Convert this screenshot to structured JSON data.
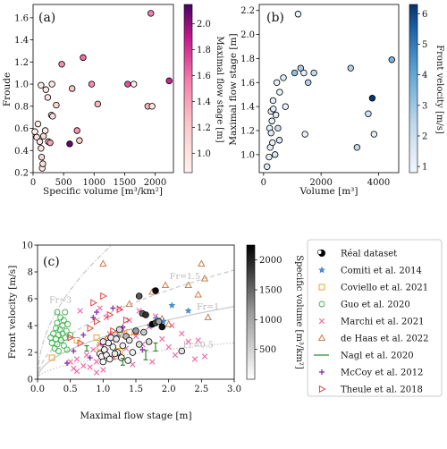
{
  "chart_data": [
    {
      "panel": "(a)",
      "type": "scatter",
      "xlabel": "Specific volume [m³/km²]",
      "ylabel": "Froude",
      "xlim": [
        0,
        2300
      ],
      "ylim": [
        0.2,
        1.72
      ],
      "xticks": [
        0,
        500,
        1000,
        1500,
        2000
      ],
      "yticks": [
        0.2,
        0.4,
        0.6,
        0.8,
        1.0,
        1.2,
        1.4,
        1.6
      ],
      "colorbar": {
        "label": "Maximal flow stage [m]",
        "ticks": [
          1.0,
          1.2,
          1.4,
          1.6,
          1.8,
          2.0
        ],
        "range": [
          0.85,
          2.15
        ],
        "colormap": "RdPu"
      },
      "points": [
        {
          "x": 30,
          "y": 0.57,
          "c": 0.9
        },
        {
          "x": 60,
          "y": 0.52,
          "c": 0.95
        },
        {
          "x": 80,
          "y": 0.64,
          "c": 0.9
        },
        {
          "x": 110,
          "y": 0.48,
          "c": 0.95
        },
        {
          "x": 130,
          "y": 0.99,
          "c": 0.9
        },
        {
          "x": 130,
          "y": 0.42,
          "c": 1.0
        },
        {
          "x": 140,
          "y": 0.34,
          "c": 1.1
        },
        {
          "x": 150,
          "y": 0.24,
          "c": 0.95
        },
        {
          "x": 160,
          "y": 0.28,
          "c": 1.0
        },
        {
          "x": 170,
          "y": 0.53,
          "c": 1.05
        },
        {
          "x": 200,
          "y": 0.58,
          "c": 0.9
        },
        {
          "x": 210,
          "y": 0.95,
          "c": 0.95
        },
        {
          "x": 240,
          "y": 0.88,
          "c": 0.95
        },
        {
          "x": 250,
          "y": 0.48,
          "c": 1.3
        },
        {
          "x": 280,
          "y": 0.47,
          "c": 1.4
        },
        {
          "x": 300,
          "y": 0.72,
          "c": 0.9
        },
        {
          "x": 310,
          "y": 1.0,
          "c": 0.95
        },
        {
          "x": 320,
          "y": 0.71,
          "c": 1.05
        },
        {
          "x": 380,
          "y": 0.81,
          "c": 1.1
        },
        {
          "x": 470,
          "y": 1.18,
          "c": 1.5
        },
        {
          "x": 600,
          "y": 0.46,
          "c": 2.1
        },
        {
          "x": 640,
          "y": 0.96,
          "c": 1.2
        },
        {
          "x": 720,
          "y": 0.58,
          "c": 1.45
        },
        {
          "x": 760,
          "y": 0.49,
          "c": 1.2
        },
        {
          "x": 820,
          "y": 1.24,
          "c": 1.6
        },
        {
          "x": 960,
          "y": 1.0,
          "c": 1.5
        },
        {
          "x": 1060,
          "y": 0.82,
          "c": 1.3
        },
        {
          "x": 1550,
          "y": 1.0,
          "c": 1.7
        },
        {
          "x": 1650,
          "y": 1.0,
          "c": 0.9
        },
        {
          "x": 1880,
          "y": 0.8,
          "c": 1.3
        },
        {
          "x": 1950,
          "y": 0.8,
          "c": 0.95
        },
        {
          "x": 1930,
          "y": 1.64,
          "c": 1.55
        },
        {
          "x": 2230,
          "y": 1.03,
          "c": 1.85
        }
      ]
    },
    {
      "panel": "(b)",
      "type": "scatter",
      "xlabel": "Volume [m³]",
      "ylabel": "Maximal flow stage [m]",
      "xlim": [
        -150,
        4700
      ],
      "ylim": [
        0.85,
        2.25
      ],
      "xticks": [
        0,
        2000,
        4000
      ],
      "yticks": [
        1.0,
        1.2,
        1.4,
        1.6,
        1.8,
        2.0,
        2.2
      ],
      "colorbar": {
        "label": "Front velocity [m/s]",
        "ticks": [
          1,
          2,
          3,
          4,
          5,
          6
        ],
        "range": [
          0.8,
          6.3
        ],
        "colormap": "Blues"
      },
      "points": [
        {
          "x": 120,
          "y": 0.9,
          "c": 1.4
        },
        {
          "x": 190,
          "y": 0.98,
          "c": 1.2
        },
        {
          "x": 210,
          "y": 1.22,
          "c": 1.1
        },
        {
          "x": 230,
          "y": 1.06,
          "c": 1.2
        },
        {
          "x": 260,
          "y": 1.18,
          "c": 1.4
        },
        {
          "x": 260,
          "y": 1.36,
          "c": 1.1
        },
        {
          "x": 290,
          "y": 1.28,
          "c": 1.0
        },
        {
          "x": 310,
          "y": 1.1,
          "c": 1.1
        },
        {
          "x": 330,
          "y": 1.45,
          "c": 1.2
        },
        {
          "x": 340,
          "y": 1.38,
          "c": 1.3
        },
        {
          "x": 400,
          "y": 1.0,
          "c": 1.6
        },
        {
          "x": 430,
          "y": 1.33,
          "c": 1.3
        },
        {
          "x": 460,
          "y": 1.6,
          "c": 1.1
        },
        {
          "x": 500,
          "y": 1.22,
          "c": 2.0
        },
        {
          "x": 550,
          "y": 1.12,
          "c": 1.5
        },
        {
          "x": 560,
          "y": 1.52,
          "c": 1.0
        },
        {
          "x": 690,
          "y": 1.64,
          "c": 1.3
        },
        {
          "x": 760,
          "y": 1.4,
          "c": 1.1
        },
        {
          "x": 1080,
          "y": 1.68,
          "c": 3.2
        },
        {
          "x": 1200,
          "y": 2.17,
          "c": 1.0
        },
        {
          "x": 1290,
          "y": 1.72,
          "c": 2.8
        },
        {
          "x": 1400,
          "y": 1.68,
          "c": 1.1
        },
        {
          "x": 1440,
          "y": 1.17,
          "c": 1.1
        },
        {
          "x": 1550,
          "y": 1.6,
          "c": 2.6
        },
        {
          "x": 1750,
          "y": 1.68,
          "c": 2.2
        },
        {
          "x": 3030,
          "y": 1.72,
          "c": 2.6
        },
        {
          "x": 3250,
          "y": 1.06,
          "c": 2.3
        },
        {
          "x": 3640,
          "y": 1.34,
          "c": 1.8
        },
        {
          "x": 3780,
          "y": 1.47,
          "c": 6.2
        },
        {
          "x": 3840,
          "y": 1.17,
          "c": 1.2
        },
        {
          "x": 4460,
          "y": 1.79,
          "c": 3.6
        }
      ]
    },
    {
      "panel": "(c)",
      "type": "scatter",
      "xlabel": "Maximal flow stage [m]",
      "ylabel": "Front velocity [m/s]",
      "xlim": [
        0,
        3.0
      ],
      "ylim": [
        0,
        10
      ],
      "xticks": [
        0.0,
        0.5,
        1.0,
        1.5,
        2.0,
        2.5,
        3.0
      ],
      "yticks": [
        0,
        2,
        4,
        6,
        8,
        10
      ],
      "colorbar": {
        "label": "Specific volume [m³/km²]",
        "ticks": [
          500,
          1000,
          1500,
          2000
        ],
        "range": [
          0,
          2250
        ],
        "colormap": "Greys"
      },
      "froude_lines": [
        {
          "label": "Fr=3",
          "fr": 3,
          "style": "dashdot"
        },
        {
          "label": "Fr=1.5",
          "fr": 1.5,
          "style": "dashed"
        },
        {
          "label": "Fr=1",
          "fr": 1,
          "style": "solid"
        },
        {
          "label": "Fr=0.5",
          "fr": 0.5,
          "style": "dotted"
        }
      ],
      "legend": [
        "Réal dataset",
        "Comiti et al. 2014",
        "Coviello et al. 2021",
        "Guo et al. 2020",
        "Marchi et al. 2021",
        "de Haas et al. 2022",
        "Nagl et al. 2020",
        "McCoy et al. 2012",
        "Theule et al. 2018"
      ],
      "series": [
        {
          "key": "real",
          "points": [
            [
              0.95,
              1.9,
              80
            ],
            [
              0.98,
              1.7,
              40
            ],
            [
              1.0,
              1.3,
              60
            ],
            [
              1.02,
              2.2,
              100
            ],
            [
              1.05,
              1.8,
              150
            ],
            [
              1.08,
              2.7,
              120
            ],
            [
              1.1,
              1.5,
              90
            ],
            [
              1.12,
              3.1,
              200
            ],
            [
              1.15,
              2.4,
              110
            ],
            [
              1.2,
              3.0,
              250
            ],
            [
              1.22,
              2.0,
              140
            ],
            [
              1.25,
              3.7,
              400
            ],
            [
              1.28,
              1.6,
              60
            ],
            [
              1.3,
              2.5,
              200
            ],
            [
              1.35,
              3.2,
              800
            ],
            [
              1.38,
              1.4,
              100
            ],
            [
              1.4,
              2.9,
              300
            ],
            [
              1.45,
              2.0,
              150
            ],
            [
              1.5,
              3.6,
              1100
            ],
            [
              1.55,
              2.6,
              350
            ],
            [
              1.6,
              4.9,
              1500
            ],
            [
              1.62,
              3.5,
              600
            ],
            [
              1.65,
              4.8,
              1900
            ],
            [
              1.7,
              2.8,
              400
            ],
            [
              1.75,
              4.1,
              2200
            ],
            [
              1.8,
              4.2,
              1700
            ],
            [
              1.85,
              4.3,
              1000
            ],
            [
              1.9,
              3.9,
              2100
            ],
            [
              1.55,
              6.2,
              1600
            ],
            [
              1.8,
              6.6,
              2200
            ],
            [
              2.2,
              2.1,
              300
            ],
            [
              1.0,
              2.8,
              200
            ],
            [
              1.18,
              1.9,
              250
            ]
          ]
        },
        {
          "key": "comiti",
          "points": [
            [
              1.72,
              4.0
            ],
            [
              1.82,
              4.5
            ],
            [
              1.92,
              4.3
            ],
            [
              2.05,
              5.5
            ],
            [
              2.3,
              5.1
            ],
            [
              1.22,
              3.2
            ]
          ]
        },
        {
          "key": "coviello",
          "points": [
            [
              0.22,
              1.6
            ],
            [
              0.6,
              2.9
            ],
            [
              0.9,
              3.1
            ],
            [
              1.05,
              2.8
            ],
            [
              1.2,
              3.3
            ],
            [
              1.4,
              3.5
            ],
            [
              0.95,
              2.4
            ],
            [
              1.25,
              2.1
            ]
          ]
        },
        {
          "key": "guo",
          "points": [
            [
              0.2,
              3.1
            ],
            [
              0.22,
              2.7
            ],
            [
              0.24,
              3.4
            ],
            [
              0.26,
              2.3
            ],
            [
              0.28,
              3.0
            ],
            [
              0.28,
              3.8
            ],
            [
              0.3,
              2.6
            ],
            [
              0.3,
              4.2
            ],
            [
              0.32,
              3.3
            ],
            [
              0.32,
              2.1
            ],
            [
              0.34,
              3.7
            ],
            [
              0.35,
              4.6
            ],
            [
              0.36,
              2.9
            ],
            [
              0.38,
              3.4
            ],
            [
              0.38,
              4.0
            ],
            [
              0.4,
              2.5
            ],
            [
              0.4,
              4.4
            ],
            [
              0.42,
              3.1
            ],
            [
              0.44,
              3.6
            ],
            [
              0.45,
              2.2
            ],
            [
              0.46,
              4.1
            ],
            [
              0.5,
              3.3
            ],
            [
              0.3,
              5.0
            ],
            [
              0.42,
              5.0
            ]
          ]
        },
        {
          "key": "marchi",
          "points": [
            [
              0.5,
              1.3
            ],
            [
              0.55,
              0.8
            ],
            [
              0.6,
              1.5
            ],
            [
              0.7,
              1.0
            ],
            [
              0.75,
              1.8
            ],
            [
              0.8,
              0.9
            ],
            [
              0.85,
              2.2
            ],
            [
              0.9,
              1.3
            ],
            [
              0.95,
              2.6
            ],
            [
              1.0,
              0.7
            ],
            [
              1.05,
              2.1
            ],
            [
              1.1,
              3.4
            ],
            [
              1.15,
              1.6
            ],
            [
              1.2,
              2.9
            ],
            [
              1.3,
              3.7
            ],
            [
              1.35,
              2.3
            ],
            [
              1.4,
              4.4
            ],
            [
              1.45,
              1.1
            ],
            [
              1.5,
              3.2
            ],
            [
              1.55,
              5.1
            ],
            [
              1.6,
              2.6
            ],
            [
              1.7,
              3.9
            ],
            [
              1.75,
              1.3
            ],
            [
              1.8,
              4.7
            ],
            [
              1.9,
              3.0
            ],
            [
              2.0,
              2.4
            ],
            [
              2.05,
              4.0
            ],
            [
              2.1,
              1.8
            ],
            [
              2.2,
              3.4
            ],
            [
              2.3,
              2.8
            ],
            [
              2.4,
              1.5
            ],
            [
              2.45,
              2.9
            ],
            [
              2.55,
              1.7
            ],
            [
              0.65,
              5.1
            ],
            [
              0.95,
              5.3
            ],
            [
              1.05,
              4.6
            ],
            [
              0.6,
              0.6
            ],
            [
              0.9,
              0.5
            ],
            [
              1.25,
              5.3
            ]
          ]
        },
        {
          "key": "dehaas",
          "points": [
            [
              1.05,
              3.0
            ],
            [
              1.3,
              3.3
            ],
            [
              1.4,
              5.6
            ],
            [
              1.5,
              3.5
            ],
            [
              1.75,
              6.5
            ],
            [
              1.9,
              4.5
            ],
            [
              1.95,
              7.0
            ],
            [
              2.0,
              4.1
            ],
            [
              2.3,
              7.0
            ],
            [
              2.45,
              6.3
            ],
            [
              2.55,
              7.5
            ],
            [
              1.0,
              8.6
            ],
            [
              2.5,
              8.6
            ],
            [
              2.6,
              4.6
            ],
            [
              1.2,
              1.7
            ]
          ]
        },
        {
          "key": "nagl",
          "points": [
            [
              0.75,
              2.3,
              0.4
            ],
            [
              1.3,
              1.3,
              0.5
            ],
            [
              1.65,
              1.8,
              0.7
            ],
            [
              1.8,
              2.4,
              0.6
            ]
          ]
        },
        {
          "key": "mccoy",
          "points": [
            [
              0.45,
              1.2
            ],
            [
              0.55,
              2.1
            ],
            [
              0.7,
              3.3
            ],
            [
              0.85,
              4.6
            ],
            [
              1.0,
              2.6
            ],
            [
              1.15,
              5.3
            ],
            [
              1.3,
              3.9
            ],
            [
              0.8,
              1.6
            ],
            [
              1.6,
              2.2
            ],
            [
              0.9,
              5.0
            ]
          ]
        },
        {
          "key": "theule",
          "points": [
            [
              0.5,
              3.1
            ],
            [
              0.65,
              2.7
            ],
            [
              0.8,
              3.8
            ],
            [
              0.9,
              4.3
            ],
            [
              1.0,
              6.2
            ],
            [
              1.15,
              3.6
            ],
            [
              1.25,
              5.2
            ],
            [
              1.35,
              4.4
            ],
            [
              0.85,
              5.7
            ],
            [
              1.1,
              4.8
            ]
          ]
        }
      ]
    }
  ]
}
